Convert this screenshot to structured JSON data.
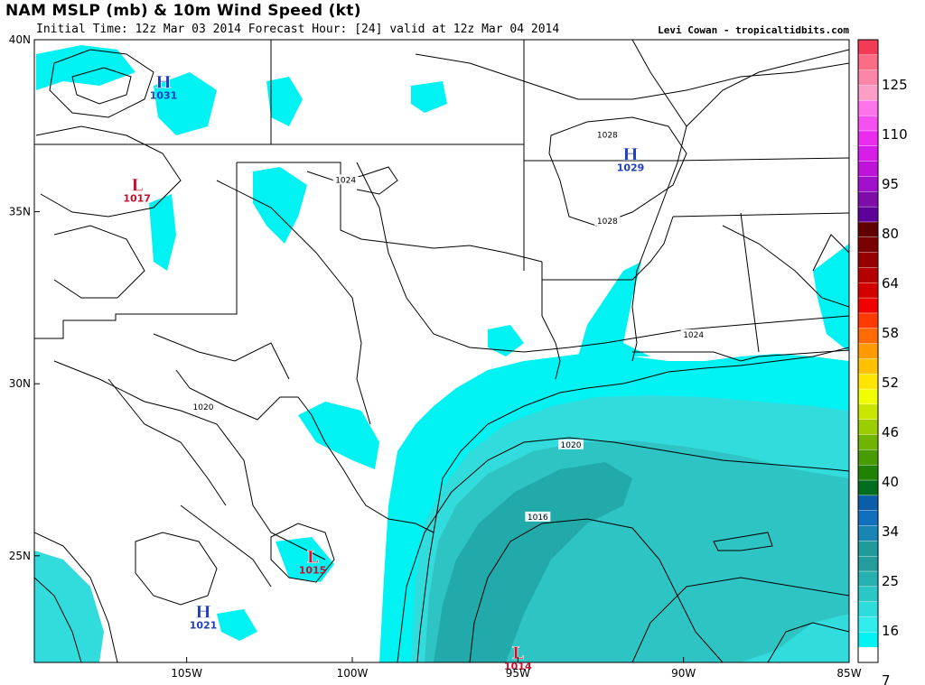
{
  "header": {
    "title": "NAM MSLP (mb) & 10m Wind Speed (kt)",
    "subtitle": "Initial Time: 12z Mar 03 2014 Forecast Hour: [24] valid at 12z Mar 04 2014",
    "credit": "Levi Cowan - tropicaltidbits.com"
  },
  "axes": {
    "lat_labels": [
      {
        "text": "40N",
        "value": 40
      },
      {
        "text": "35N",
        "value": 35
      },
      {
        "text": "30N",
        "value": 30
      },
      {
        "text": "25N",
        "value": 25
      }
    ],
    "lon_labels": [
      {
        "text": "105W",
        "value": -105
      },
      {
        "text": "100W",
        "value": -100
      },
      {
        "text": "95W",
        "value": -95
      },
      {
        "text": "90W",
        "value": -90
      },
      {
        "text": "85W",
        "value": -85
      }
    ]
  },
  "pressure_centers": [
    {
      "type": "H",
      "value": "1031",
      "lon": -105.7,
      "lat": 38.6,
      "color": "#1f3fbf"
    },
    {
      "type": "H",
      "value": "1029",
      "lon": -91.6,
      "lat": 36.5,
      "color": "#1f3fbf"
    },
    {
      "type": "L",
      "value": "1017",
      "lon": -106.5,
      "lat": 35.6,
      "color": "#c8102e"
    },
    {
      "type": "L",
      "value": "1015",
      "lon": -101.2,
      "lat": 24.8,
      "color": "#c8102e"
    },
    {
      "type": "H",
      "value": "1021",
      "lon": -104.5,
      "lat": 23.2,
      "color": "#1f3fbf"
    },
    {
      "type": "L",
      "value": "1014",
      "lon": -95.0,
      "lat": 22.0,
      "color": "#c8102e"
    }
  ],
  "isobar_labels": [
    {
      "text": "1024",
      "lon": -100.2,
      "lat": 35.9
    },
    {
      "text": "1028",
      "lon": -92.3,
      "lat": 37.2
    },
    {
      "text": "1028",
      "lon": -92.3,
      "lat": 34.7
    },
    {
      "text": "1024",
      "lon": -89.7,
      "lat": 31.4
    },
    {
      "text": "1020",
      "lon": -104.5,
      "lat": 29.3
    },
    {
      "text": "1020",
      "lon": -93.4,
      "lat": 28.2
    },
    {
      "text": "1016",
      "lon": -94.4,
      "lat": 26.1
    }
  ],
  "colorbar": {
    "labels": [
      "125",
      "110",
      "95",
      "80",
      "64",
      "58",
      "52",
      "46",
      "40",
      "34",
      "25",
      "16",
      "7"
    ],
    "colors": [
      "#f43b56",
      "#fa6d84",
      "#fc86a9",
      "#fd9ec9",
      "#fc73ea",
      "#f551f0",
      "#ea2cef",
      "#d61ee8",
      "#bf13d9",
      "#a00fca",
      "#7e0ca8",
      "#5c0099",
      "#600000",
      "#7a0000",
      "#980000",
      "#b50000",
      "#d40000",
      "#f10000",
      "#ff3a00",
      "#ff6b00",
      "#ff9b00",
      "#ffc100",
      "#ffe500",
      "#f0ff00",
      "#c8e600",
      "#9ccd00",
      "#71b400",
      "#489b00",
      "#1f8200",
      "#006e1e",
      "#0a5ea8",
      "#116fbe",
      "#1885b5",
      "#1f9b9b",
      "#239c9c",
      "#27b0b0",
      "#2bc6c6",
      "#2fdcdc",
      "#33ecec",
      "#00f2f2",
      "#ffffff"
    ]
  }
}
